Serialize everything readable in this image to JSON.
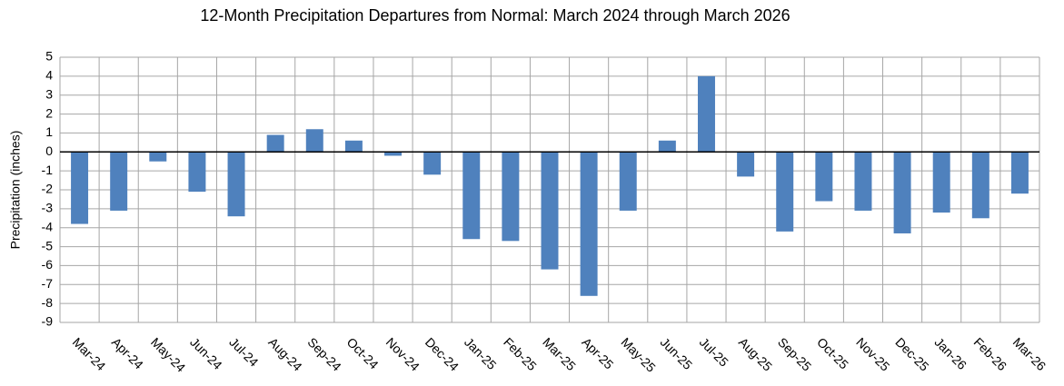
{
  "chart_data": {
    "type": "bar",
    "title": "12-Month Precipitation Departures from Normal: March 2024 through March 2026",
    "y_label": "Precipitation (inches)",
    "categories": [
      "Mar-24",
      "Apr-24",
      "May-24",
      "Jun-24",
      "Jul-24",
      "Aug-24",
      "Sep-24",
      "Oct-24",
      "Nov-24",
      "Dec-24",
      "Jan-25",
      "Feb-25",
      "Mar-25",
      "Apr-25",
      "May-25",
      "Jun-25",
      "Jul-25",
      "Aug-25",
      "Sep-25",
      "Oct-25",
      "Nov-25",
      "Dec-25",
      "Jan-26",
      "Feb-26",
      "Mar-26"
    ],
    "values": [
      -3.8,
      -3.1,
      -0.5,
      -2.1,
      -3.4,
      0.9,
      1.2,
      0.6,
      -0.2,
      -1.2,
      -4.6,
      -4.7,
      -6.2,
      -7.6,
      -3.1,
      0.6,
      4.0,
      -1.3,
      -4.2,
      -2.6,
      -3.1,
      -4.3,
      -3.2,
      -3.5,
      -2.2
    ],
    "color": "#4f81bd",
    "ylim": [
      -9,
      5
    ],
    "yticks": [
      -9,
      -8,
      -7,
      -6,
      -5,
      -4,
      -3,
      -2,
      -1,
      0,
      1,
      2,
      3,
      4,
      5
    ],
    "grid": true
  }
}
